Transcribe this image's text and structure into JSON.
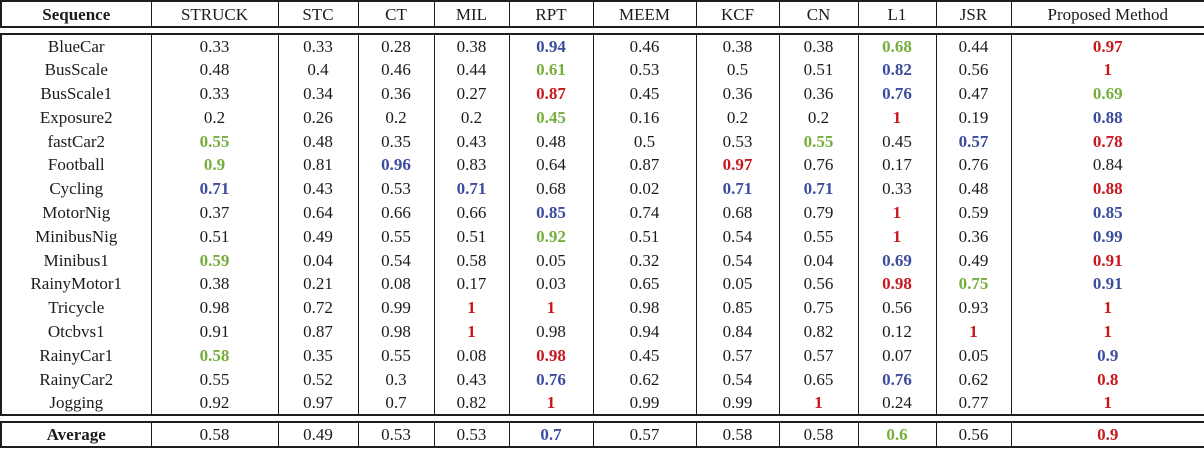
{
  "palette": {
    "red": "#c8171e",
    "blue": "#3c4c9e",
    "green": "#74ae3c",
    "text": "#1b1b1b",
    "border": "#1d1d1d"
  },
  "table": {
    "columns": [
      "Sequence",
      "STRUCK",
      "STC",
      "CT",
      "MIL",
      "RPT",
      "MEEM",
      "KCF",
      "CN",
      "L1",
      "JSR",
      "Proposed Method"
    ],
    "rows": [
      {
        "label": "BlueCar",
        "values": [
          "0.33",
          "0.33",
          "0.28",
          "0.38",
          "0.94",
          "0.46",
          "0.38",
          "0.38",
          "0.68",
          "0.44",
          "0.97"
        ],
        "colors": [
          "k",
          "k",
          "k",
          "k",
          "b",
          "k",
          "k",
          "k",
          "g",
          "k",
          "r"
        ]
      },
      {
        "label": "BusScale",
        "values": [
          "0.48",
          "0.4",
          "0.46",
          "0.44",
          "0.61",
          "0.53",
          "0.5",
          "0.51",
          "0.82",
          "0.56",
          "1"
        ],
        "colors": [
          "k",
          "k",
          "k",
          "k",
          "g",
          "k",
          "k",
          "k",
          "b",
          "k",
          "r"
        ]
      },
      {
        "label": "BusScale1",
        "values": [
          "0.33",
          "0.34",
          "0.36",
          "0.27",
          "0.87",
          "0.45",
          "0.36",
          "0.36",
          "0.76",
          "0.47",
          "0.69"
        ],
        "colors": [
          "k",
          "k",
          "k",
          "k",
          "r",
          "k",
          "k",
          "k",
          "b",
          "k",
          "g"
        ]
      },
      {
        "label": "Exposure2",
        "values": [
          "0.2",
          "0.26",
          "0.2",
          "0.2",
          "0.45",
          "0.16",
          "0.2",
          "0.2",
          "1",
          "0.19",
          "0.88"
        ],
        "colors": [
          "k",
          "k",
          "k",
          "k",
          "g",
          "k",
          "k",
          "k",
          "r",
          "k",
          "b"
        ]
      },
      {
        "label": "fastCar2",
        "values": [
          "0.55",
          "0.48",
          "0.35",
          "0.43",
          "0.48",
          "0.5",
          "0.53",
          "0.55",
          "0.45",
          "0.57",
          "0.78"
        ],
        "colors": [
          "g",
          "k",
          "k",
          "k",
          "k",
          "k",
          "k",
          "g",
          "k",
          "b",
          "r"
        ]
      },
      {
        "label": "Football",
        "values": [
          "0.9",
          "0.81",
          "0.96",
          "0.83",
          "0.64",
          "0.87",
          "0.97",
          "0.76",
          "0.17",
          "0.76",
          "0.84"
        ],
        "colors": [
          "g",
          "k",
          "b",
          "k",
          "k",
          "k",
          "r",
          "k",
          "k",
          "k",
          "k"
        ]
      },
      {
        "label": "Cycling",
        "values": [
          "0.71",
          "0.43",
          "0.53",
          "0.71",
          "0.68",
          "0.02",
          "0.71",
          "0.71",
          "0.33",
          "0.48",
          "0.88"
        ],
        "colors": [
          "b",
          "k",
          "k",
          "b",
          "k",
          "k",
          "b",
          "b",
          "k",
          "k",
          "r"
        ]
      },
      {
        "label": "MotorNig",
        "values": [
          "0.37",
          "0.64",
          "0.66",
          "0.66",
          "0.85",
          "0.74",
          "0.68",
          "0.79",
          "1",
          "0.59",
          "0.85"
        ],
        "colors": [
          "k",
          "k",
          "k",
          "k",
          "b",
          "k",
          "k",
          "k",
          "r",
          "k",
          "b"
        ]
      },
      {
        "label": "MinibusNig",
        "values": [
          "0.51",
          "0.49",
          "0.55",
          "0.51",
          "0.92",
          "0.51",
          "0.54",
          "0.55",
          "1",
          "0.36",
          "0.99"
        ],
        "colors": [
          "k",
          "k",
          "k",
          "k",
          "g",
          "k",
          "k",
          "k",
          "r",
          "k",
          "b"
        ]
      },
      {
        "label": "Minibus1",
        "values": [
          "0.59",
          "0.04",
          "0.54",
          "0.58",
          "0.05",
          "0.32",
          "0.54",
          "0.04",
          "0.69",
          "0.49",
          "0.91"
        ],
        "colors": [
          "g",
          "k",
          "k",
          "k",
          "k",
          "k",
          "k",
          "k",
          "b",
          "k",
          "r"
        ]
      },
      {
        "label": "RainyMotor1",
        "values": [
          "0.38",
          "0.21",
          "0.08",
          "0.17",
          "0.03",
          "0.65",
          "0.05",
          "0.56",
          "0.98",
          "0.75",
          "0.91"
        ],
        "colors": [
          "k",
          "k",
          "k",
          "k",
          "k",
          "k",
          "k",
          "k",
          "r",
          "g",
          "b"
        ]
      },
      {
        "label": "Tricycle",
        "values": [
          "0.98",
          "0.72",
          "0.99",
          "1",
          "1",
          "0.98",
          "0.85",
          "0.75",
          "0.56",
          "0.93",
          "1"
        ],
        "colors": [
          "k",
          "k",
          "k",
          "r",
          "r",
          "k",
          "k",
          "k",
          "k",
          "k",
          "r"
        ]
      },
      {
        "label": "Otcbvs1",
        "values": [
          "0.91",
          "0.87",
          "0.98",
          "1",
          "0.98",
          "0.94",
          "0.84",
          "0.82",
          "0.12",
          "1",
          "1"
        ],
        "colors": [
          "k",
          "k",
          "k",
          "r",
          "k",
          "k",
          "k",
          "k",
          "k",
          "r",
          "r"
        ]
      },
      {
        "label": "RainyCar1",
        "values": [
          "0.58",
          "0.35",
          "0.55",
          "0.08",
          "0.98",
          "0.45",
          "0.57",
          "0.57",
          "0.07",
          "0.05",
          "0.9"
        ],
        "colors": [
          "g",
          "k",
          "k",
          "k",
          "r",
          "k",
          "k",
          "k",
          "k",
          "k",
          "b"
        ]
      },
      {
        "label": "RainyCar2",
        "values": [
          "0.55",
          "0.52",
          "0.3",
          "0.43",
          "0.76",
          "0.62",
          "0.54",
          "0.65",
          "0.76",
          "0.62",
          "0.8"
        ],
        "colors": [
          "k",
          "k",
          "k",
          "k",
          "b",
          "k",
          "k",
          "k",
          "b",
          "k",
          "r"
        ]
      },
      {
        "label": "Jogging",
        "values": [
          "0.92",
          "0.97",
          "0.7",
          "0.82",
          "1",
          "0.99",
          "0.99",
          "1",
          "0.24",
          "0.77",
          "1"
        ],
        "colors": [
          "k",
          "k",
          "k",
          "k",
          "r",
          "k",
          "k",
          "r",
          "k",
          "k",
          "r"
        ]
      }
    ],
    "average": {
      "label": "Average",
      "values": [
        "0.58",
        "0.49",
        "0.53",
        "0.53",
        "0.7",
        "0.57",
        "0.58",
        "0.58",
        "0.6",
        "0.56",
        "0.9"
      ],
      "colors": [
        "k",
        "k",
        "k",
        "k",
        "b",
        "k",
        "k",
        "k",
        "g",
        "k",
        "r"
      ]
    }
  }
}
